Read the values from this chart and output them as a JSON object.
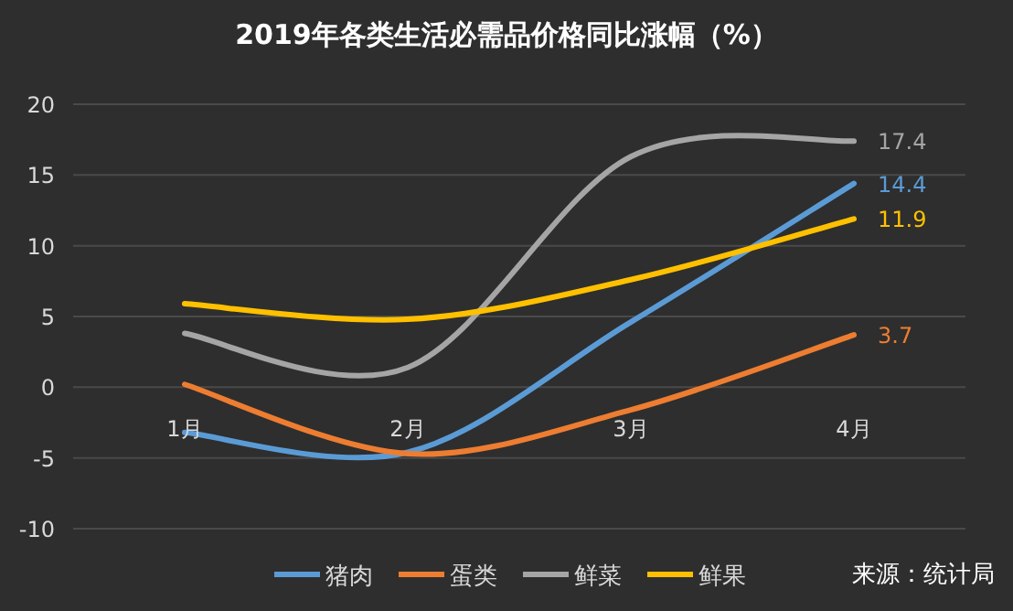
{
  "chart_data": {
    "type": "line",
    "title": "2019年各类生活必需品价格同比涨幅（%）",
    "categories": [
      "1月",
      "2月",
      "3月",
      "4月"
    ],
    "series": [
      {
        "name": "猪肉",
        "color": "#5b9bd5",
        "values": [
          -3.2,
          -4.6,
          4.6,
          14.4
        ],
        "value_labels": [
          null,
          null,
          null,
          "14.4"
        ]
      },
      {
        "name": "蛋类",
        "color": "#ed7d31",
        "values": [
          0.2,
          -4.7,
          -1.6,
          3.7
        ],
        "value_labels": [
          null,
          null,
          null,
          "3.7"
        ]
      },
      {
        "name": "鲜菜",
        "color": "#a5a5a5",
        "values": [
          3.8,
          1.4,
          16.3,
          17.4
        ],
        "value_labels": [
          null,
          null,
          null,
          "17.4"
        ]
      },
      {
        "name": "鲜果",
        "color": "#ffc000",
        "values": [
          5.9,
          4.8,
          7.6,
          11.9
        ],
        "value_labels": [
          null,
          null,
          null,
          "11.9"
        ]
      }
    ],
    "ylim": [
      -10,
      20
    ],
    "yticks": [
      -10,
      -5,
      0,
      5,
      10,
      15,
      20
    ],
    "grid": "y",
    "legend": "bottom",
    "marker": "none",
    "line_style": "solid",
    "annotations": [
      "来源：统计局"
    ]
  }
}
